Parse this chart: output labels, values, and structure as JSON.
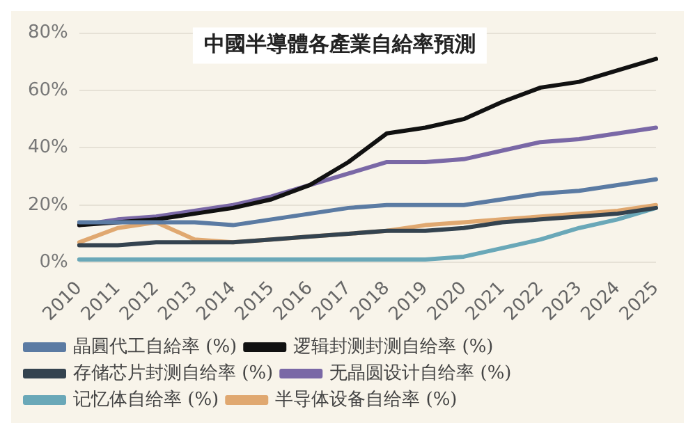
{
  "chart_data": {
    "type": "line",
    "title": "中國半導體各產業自給率預測",
    "categories": [
      "2010",
      "2011",
      "2012",
      "2013",
      "2014",
      "2015",
      "2016",
      "2017",
      "2018",
      "2019",
      "2020",
      "2021",
      "2022",
      "2023",
      "2024",
      "2025"
    ],
    "series": [
      {
        "name": "晶圓代工自給率 (%)",
        "color": "#5b7ba3",
        "values": [
          14,
          14,
          14,
          14,
          13,
          15,
          17,
          19,
          20,
          20,
          20,
          22,
          24,
          25,
          27,
          29
        ]
      },
      {
        "name": "逻辑封测封测自给率 (%)",
        "color": "#111111",
        "values": [
          13,
          14,
          15,
          17,
          19,
          22,
          27,
          35,
          45,
          47,
          50,
          56,
          61,
          63,
          67,
          71
        ]
      },
      {
        "name": "存储芯片封测自给率 (%)",
        "color": "#34434f",
        "values": [
          6,
          6,
          7,
          7,
          7,
          8,
          9,
          10,
          11,
          11,
          12,
          14,
          15,
          16,
          17,
          19
        ]
      },
      {
        "name": "无晶圆设计自给率 (%)",
        "color": "#7a68a6",
        "values": [
          13,
          15,
          16,
          18,
          20,
          23,
          27,
          31,
          35,
          35,
          36,
          39,
          42,
          43,
          45,
          47
        ]
      },
      {
        "name": "记忆体自给率 (%)",
        "color": "#6aa8b8",
        "values": [
          1,
          1,
          1,
          1,
          1,
          1,
          1,
          1,
          1,
          1,
          2,
          5,
          8,
          12,
          15,
          19
        ]
      },
      {
        "name": "半导体设备自给率 (%)",
        "color": "#e0a870",
        "values": [
          7,
          12,
          14,
          8,
          7,
          8,
          9,
          10,
          11,
          13,
          14,
          15,
          16,
          17,
          18,
          20
        ]
      }
    ],
    "ylim": [
      0,
      80
    ],
    "yticks": [
      {
        "value": 0,
        "label": "0%"
      },
      {
        "value": 20,
        "label": "20%"
      },
      {
        "value": 40,
        "label": "40%"
      },
      {
        "value": 60,
        "label": "60%"
      },
      {
        "value": 80,
        "label": "80%"
      }
    ],
    "grid": "y",
    "legend": "bottom",
    "marker": "none",
    "line_style": "solid"
  }
}
